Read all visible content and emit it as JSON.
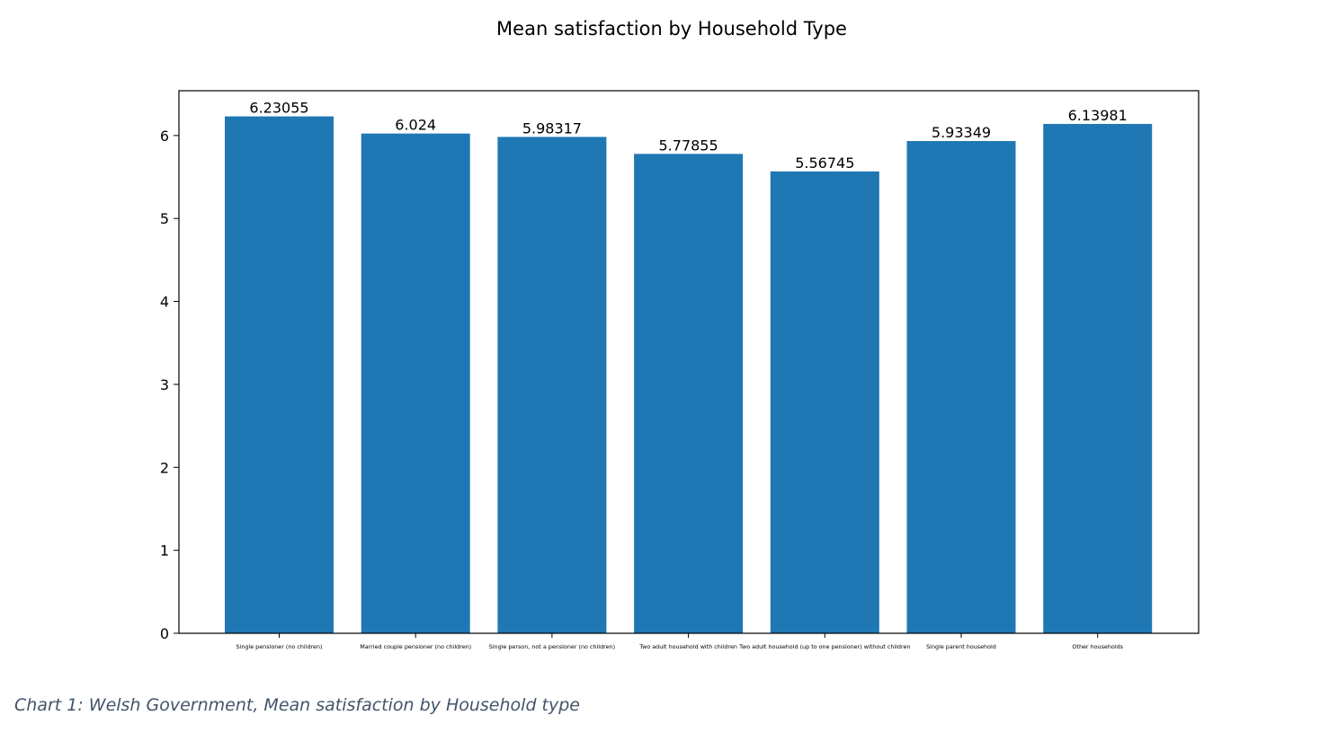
{
  "chart_data": {
    "type": "bar",
    "title": "Mean satisfaction by Household Type",
    "xlabel": "",
    "ylabel": "",
    "categories": [
      "Single pensioner (no children)",
      "Married couple pensioner (no children)",
      "Single person, not a pensioner (no children)",
      "Two adult household with children",
      "Two adult household (up to one pensioner) without children",
      "Single parent household",
      "Other households"
    ],
    "values": [
      6.23055,
      6.024,
      5.98317,
      5.77855,
      5.56745,
      5.93349,
      6.13981
    ],
    "data_labels": [
      "6.23055",
      "6.024",
      "5.98317",
      "5.77855",
      "5.56745",
      "5.93349",
      "6.13981"
    ],
    "ylim": [
      0,
      6.54
    ],
    "yticks": [
      0,
      1,
      2,
      3,
      4,
      5,
      6
    ],
    "grid": false,
    "bar_color": "#1f77b4"
  },
  "caption": "Chart 1: Welsh Government, Mean satisfaction by Household type"
}
